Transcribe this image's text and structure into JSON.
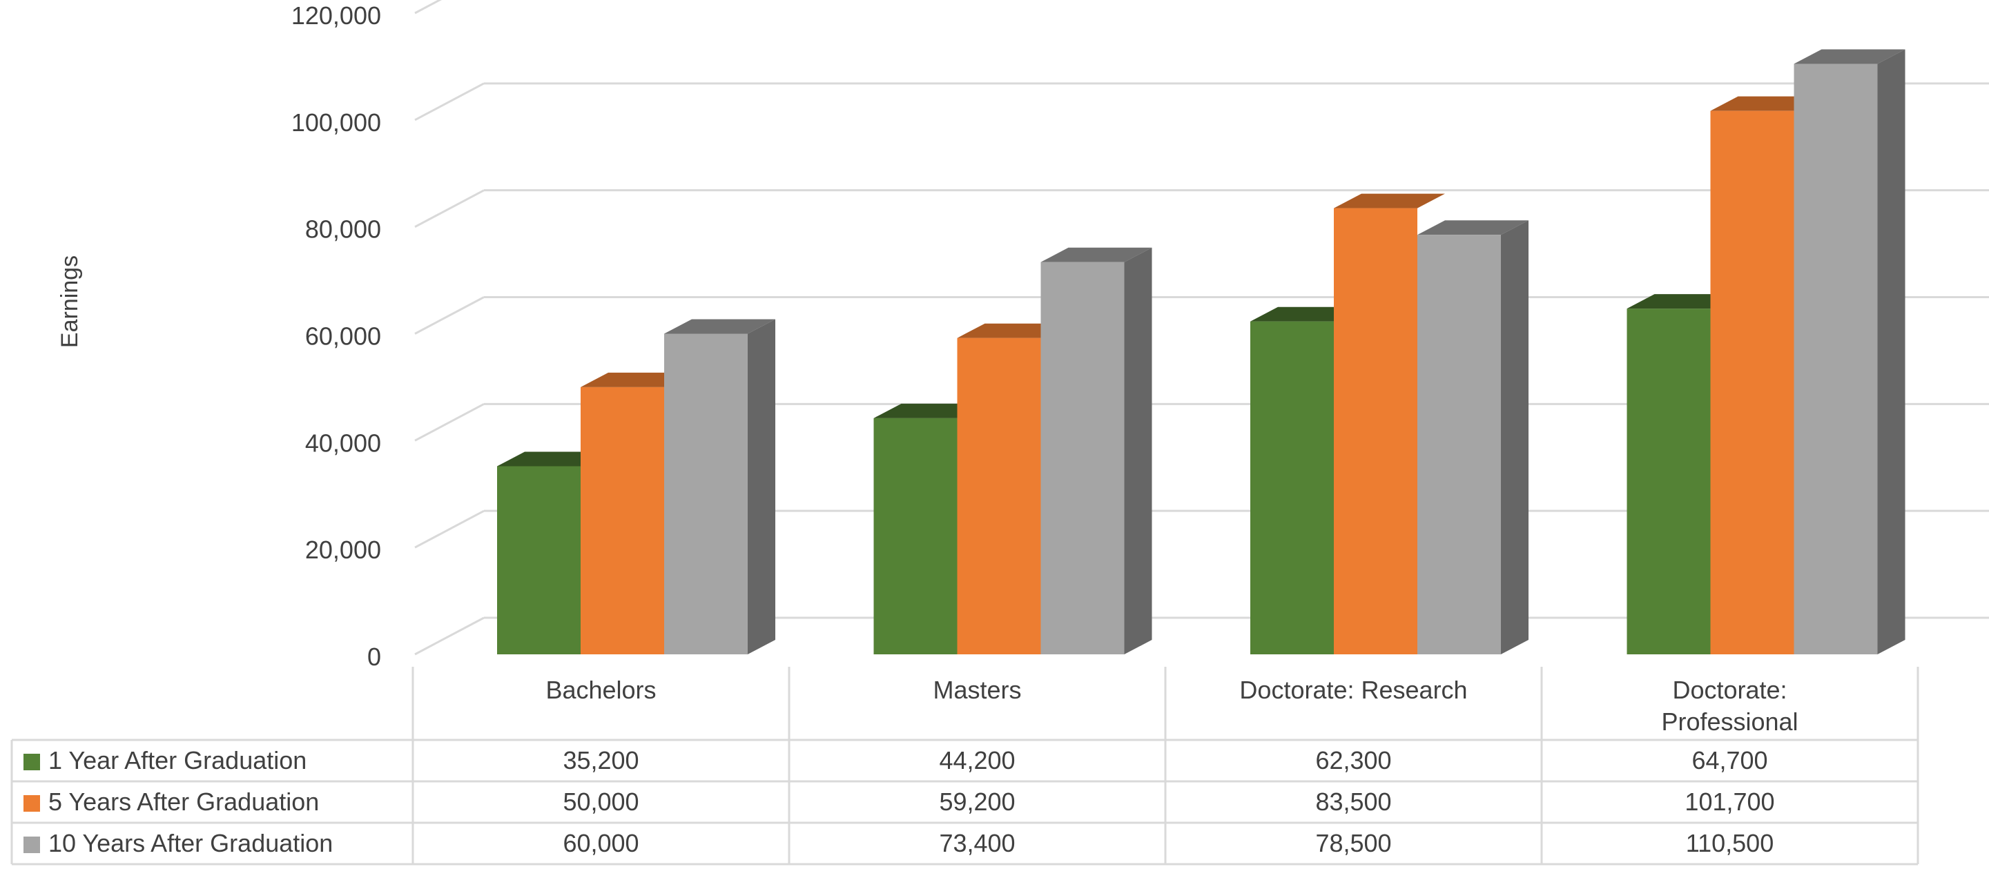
{
  "chart_data": {
    "type": "bar",
    "subtype": "3d-clustered-column-with-data-table",
    "title": "",
    "xlabel": "",
    "ylabel": "Earnings",
    "ylim": [
      0,
      120000
    ],
    "yticks": [
      0,
      20000,
      40000,
      60000,
      80000,
      100000,
      120000
    ],
    "ytick_labels": [
      "0",
      "20,000",
      "40,000",
      "60,000",
      "80,000",
      "100,000",
      "120,000"
    ],
    "grid": true,
    "legend": "data-table-left",
    "categories": [
      "Bachelors",
      "Masters",
      "Doctorate: Research",
      "Doctorate: Professional"
    ],
    "series": [
      {
        "name": "1 Year After Graduation",
        "color": "#548235",
        "values": [
          35200,
          44200,
          62300,
          64700
        ],
        "labels": [
          "35,200",
          "44,200",
          "62,300",
          "64,700"
        ]
      },
      {
        "name": "5 Years After Graduation",
        "color": "#ED7D31",
        "values": [
          50000,
          59200,
          83500,
          101700
        ],
        "labels": [
          "50,000",
          "59,200",
          "83,500",
          "101,700"
        ]
      },
      {
        "name": "10 Years After Graduation",
        "color": "#A5A5A5",
        "values": [
          60000,
          73400,
          78500,
          110500
        ],
        "labels": [
          "60,000",
          "73,400",
          "78,500",
          "110,500"
        ]
      }
    ]
  }
}
